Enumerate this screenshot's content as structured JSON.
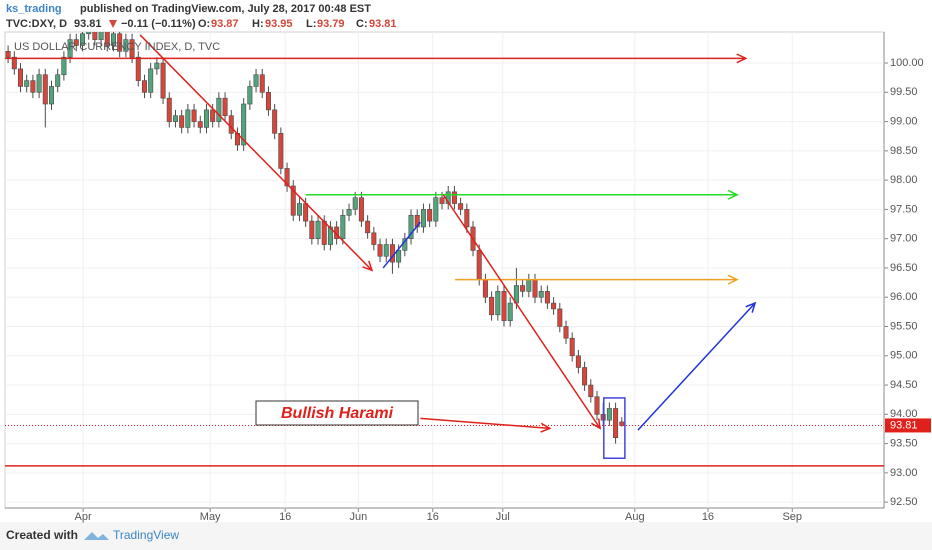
{
  "header": {
    "author": "ks_trading",
    "published": "published on TradingView.com, July 28, 2017 00:48 EST",
    "symbol": "TVC:DXY, D",
    "change": "−0.11 (−0.11%)",
    "ohlc_labels": [
      "O:",
      "H:",
      "L:",
      "C:"
    ]
  },
  "chart_data": {
    "type": "candlestick",
    "title": "US DOLLAR CURRENCY INDEX, D, TVC",
    "annotation": "Bullish Harami",
    "x": [
      0,
      1,
      2,
      3,
      4,
      5,
      6,
      7,
      8,
      9,
      10,
      11,
      12,
      13,
      14,
      15,
      16,
      17,
      18,
      19,
      20,
      21,
      22,
      23,
      24,
      25,
      26,
      27,
      28,
      29,
      30,
      31,
      32,
      33,
      34,
      35,
      36,
      37,
      38,
      39,
      40,
      41,
      42,
      43,
      44,
      45,
      46,
      47,
      48,
      49,
      50,
      51,
      52,
      53,
      54,
      55,
      56,
      57,
      58,
      59,
      60,
      61,
      62,
      63,
      64,
      65,
      66,
      67,
      68,
      69,
      70,
      71,
      72,
      73,
      74,
      75,
      76,
      77,
      78,
      79,
      80,
      81,
      82,
      83,
      84,
      85,
      86,
      87,
      88,
      89,
      90,
      91,
      92,
      93,
      94,
      95,
      96,
      97,
      98,
      99
    ],
    "candles": [
      [
        100.2,
        100.3,
        100.0,
        100.1
      ],
      [
        100.1,
        100.2,
        99.8,
        99.9
      ],
      [
        99.9,
        100.0,
        99.5,
        99.6
      ],
      [
        99.6,
        99.8,
        99.5,
        99.7
      ],
      [
        99.7,
        99.8,
        99.4,
        99.5
      ],
      [
        99.5,
        99.9,
        99.4,
        99.8
      ],
      [
        99.8,
        99.9,
        98.9,
        99.3
      ],
      [
        99.3,
        99.7,
        99.2,
        99.6
      ],
      [
        99.6,
        99.9,
        99.5,
        99.8
      ],
      [
        99.8,
        100.2,
        99.7,
        100.1
      ],
      [
        100.1,
        100.5,
        100.0,
        100.4
      ],
      [
        100.4,
        100.5,
        100.2,
        100.3
      ],
      [
        100.3,
        100.6,
        100.2,
        100.5
      ],
      [
        100.5,
        100.8,
        100.4,
        100.7
      ],
      [
        100.7,
        100.8,
        100.3,
        100.4
      ],
      [
        100.4,
        100.7,
        100.3,
        100.6
      ],
      [
        100.6,
        100.7,
        100.2,
        100.3
      ],
      [
        100.3,
        100.6,
        100.2,
        100.5
      ],
      [
        100.5,
        100.6,
        100.1,
        100.2
      ],
      [
        100.2,
        100.5,
        100.1,
        100.4
      ],
      [
        100.4,
        100.5,
        100.0,
        100.1
      ],
      [
        100.1,
        100.2,
        99.6,
        99.7
      ],
      [
        99.7,
        99.8,
        99.4,
        99.5
      ],
      [
        99.5,
        100.0,
        99.4,
        99.9
      ],
      [
        99.9,
        100.1,
        99.8,
        100.0
      ],
      [
        100.0,
        100.1,
        99.3,
        99.4
      ],
      [
        99.4,
        99.5,
        98.9,
        99.0
      ],
      [
        99.0,
        99.2,
        98.9,
        99.1
      ],
      [
        99.1,
        99.2,
        98.8,
        98.9
      ],
      [
        98.9,
        99.3,
        98.8,
        99.2
      ],
      [
        99.2,
        99.3,
        98.9,
        99.0
      ],
      [
        99.0,
        99.1,
        98.8,
        98.9
      ],
      [
        98.9,
        99.3,
        98.8,
        99.2
      ],
      [
        99.2,
        99.3,
        98.9,
        99.0
      ],
      [
        99.0,
        99.5,
        98.9,
        99.4
      ],
      [
        99.4,
        99.5,
        99.0,
        99.1
      ],
      [
        99.1,
        99.2,
        98.7,
        98.8
      ],
      [
        98.8,
        98.9,
        98.5,
        98.6
      ],
      [
        98.6,
        99.4,
        98.5,
        99.3
      ],
      [
        99.3,
        99.7,
        99.2,
        99.6
      ],
      [
        99.6,
        99.9,
        99.5,
        99.8
      ],
      [
        99.8,
        99.9,
        99.4,
        99.5
      ],
      [
        99.5,
        99.6,
        99.1,
        99.2
      ],
      [
        99.2,
        99.3,
        98.7,
        98.8
      ],
      [
        98.8,
        98.9,
        98.1,
        98.2
      ],
      [
        98.2,
        98.3,
        97.8,
        97.9
      ],
      [
        97.9,
        98.0,
        97.3,
        97.4
      ],
      [
        97.4,
        97.7,
        97.3,
        97.6
      ],
      [
        97.6,
        97.7,
        97.2,
        97.3
      ],
      [
        97.3,
        97.4,
        96.9,
        97.0
      ],
      [
        97.0,
        97.4,
        96.9,
        97.3
      ],
      [
        97.3,
        97.4,
        96.8,
        96.9
      ],
      [
        96.9,
        97.3,
        96.8,
        97.2
      ],
      [
        97.2,
        97.3,
        96.9,
        97.0
      ],
      [
        97.0,
        97.5,
        96.9,
        97.4
      ],
      [
        97.4,
        97.6,
        97.3,
        97.5
      ],
      [
        97.5,
        97.8,
        97.4,
        97.7
      ],
      [
        97.7,
        97.8,
        97.2,
        97.3
      ],
      [
        97.3,
        97.4,
        97.0,
        97.1
      ],
      [
        97.1,
        97.2,
        96.8,
        96.9
      ],
      [
        96.9,
        97.0,
        96.6,
        96.7
      ],
      [
        96.7,
        97.0,
        96.6,
        96.9
      ],
      [
        96.9,
        97.0,
        96.4,
        96.6
      ],
      [
        96.6,
        96.9,
        96.5,
        96.8
      ],
      [
        96.8,
        97.1,
        96.7,
        97.0
      ],
      [
        97.0,
        97.5,
        96.9,
        97.4
      ],
      [
        97.4,
        97.5,
        97.1,
        97.2
      ],
      [
        97.2,
        97.6,
        97.1,
        97.5
      ],
      [
        97.5,
        97.6,
        97.2,
        97.3
      ],
      [
        97.3,
        97.8,
        97.2,
        97.7
      ],
      [
        97.7,
        97.8,
        97.5,
        97.6
      ],
      [
        97.6,
        97.9,
        97.5,
        97.8
      ],
      [
        97.8,
        97.9,
        97.5,
        97.6
      ],
      [
        97.6,
        97.7,
        97.4,
        97.5
      ],
      [
        97.5,
        97.6,
        97.1,
        97.2
      ],
      [
        97.2,
        97.3,
        96.7,
        96.8
      ],
      [
        96.8,
        96.9,
        96.2,
        96.3
      ],
      [
        96.3,
        96.4,
        95.9,
        96.0
      ],
      [
        96.0,
        96.1,
        95.6,
        95.7
      ],
      [
        95.7,
        96.2,
        95.6,
        96.1
      ],
      [
        96.1,
        96.2,
        95.5,
        95.6
      ],
      [
        95.6,
        96.0,
        95.5,
        95.9
      ],
      [
        95.9,
        96.5,
        95.8,
        96.2
      ],
      [
        96.2,
        96.3,
        96.0,
        96.1
      ],
      [
        96.1,
        96.4,
        96.0,
        96.3
      ],
      [
        96.3,
        96.4,
        95.9,
        96.0
      ],
      [
        96.0,
        96.2,
        95.9,
        96.1
      ],
      [
        96.1,
        96.2,
        95.8,
        95.9
      ],
      [
        95.9,
        96.0,
        95.7,
        95.8
      ],
      [
        95.8,
        95.9,
        95.4,
        95.5
      ],
      [
        95.5,
        95.6,
        95.2,
        95.3
      ],
      [
        95.3,
        95.4,
        94.9,
        95.0
      ],
      [
        95.0,
        95.1,
        94.7,
        94.8
      ],
      [
        94.8,
        94.9,
        94.4,
        94.5
      ],
      [
        94.5,
        94.6,
        94.2,
        94.3
      ],
      [
        94.3,
        94.4,
        93.9,
        94.0
      ],
      [
        94.0,
        94.2,
        93.8,
        93.9
      ],
      [
        93.9,
        94.2,
        93.8,
        94.1
      ],
      [
        94.1,
        94.2,
        93.5,
        93.6
      ],
      [
        93.87,
        93.95,
        93.79,
        93.81
      ]
    ],
    "up_color": "#53a47d",
    "down_color": "#d6463a",
    "xlim": [
      -0.5,
      141.3
    ],
    "ylim": [
      92.4,
      100.53
    ],
    "xticks": [
      {
        "value": 12.1,
        "label": "Apr"
      },
      {
        "value": 32.6,
        "label": "May"
      },
      {
        "value": 44.7,
        "label": "16"
      },
      {
        "value": 56.5,
        "label": "Jun"
      },
      {
        "value": 68.5,
        "label": "16"
      },
      {
        "value": 79.8,
        "label": "Jul"
      },
      {
        "value": 101.1,
        "label": "Aug"
      },
      {
        "value": 112.9,
        "label": "16"
      },
      {
        "value": 126.5,
        "label": "Sep"
      }
    ],
    "yticks": [
      {
        "value": 92.5,
        "label": "92.50"
      },
      {
        "value": 93,
        "label": "93.00"
      },
      {
        "value": 93.5,
        "label": "93.50"
      },
      {
        "value": 94,
        "label": "94.00"
      },
      {
        "value": 94.5,
        "label": "94.50"
      },
      {
        "value": 95,
        "label": "95.00"
      },
      {
        "value": 95.5,
        "label": "95.50"
      },
      {
        "value": 96,
        "label": "96.00"
      },
      {
        "value": 96.5,
        "label": "96.50"
      },
      {
        "value": 97,
        "label": "97.00"
      },
      {
        "value": 97.5,
        "label": "97.50"
      },
      {
        "value": 98,
        "label": "98.00"
      },
      {
        "value": 98.5,
        "label": "98.50"
      },
      {
        "value": 99,
        "label": "99.00"
      },
      {
        "value": 99.5,
        "label": "99.50"
      },
      {
        "value": 100,
        "label": "100.00"
      }
    ],
    "grid": true,
    "drawings": [
      {
        "kind": "line",
        "color": "#e0201b",
        "arrow": true,
        "x": [
          -0.5,
          119
        ],
        "y": [
          100.08,
          100.08
        ]
      },
      {
        "kind": "line",
        "color": "#22dd22",
        "arrow": true,
        "x": [
          48,
          117.6
        ],
        "y": [
          97.75,
          97.75
        ]
      },
      {
        "kind": "line",
        "color": "#f0a020",
        "arrow": true,
        "x": [
          72.1,
          117.6
        ],
        "y": [
          96.3,
          96.3
        ]
      },
      {
        "kind": "line",
        "color": "#e0201b",
        "arrow": false,
        "x": [
          -0.5,
          141.3
        ],
        "y": [
          93.12,
          93.12
        ]
      },
      {
        "kind": "line",
        "color": "#e0201b",
        "arrow": true,
        "x": [
          21.3,
          58.7
        ],
        "y": [
          100.48,
          96.46
        ]
      },
      {
        "kind": "line",
        "color": "#2233dd",
        "arrow": false,
        "x": [
          60.5,
          66.5
        ],
        "y": [
          96.5,
          97.28
        ]
      },
      {
        "kind": "line",
        "color": "#e0201b",
        "arrow": true,
        "x": [
          70.2,
          95.5
        ],
        "y": [
          97.75,
          93.76
        ]
      },
      {
        "kind": "line",
        "color": "#2233dd",
        "arrow": true,
        "x": [
          101.6,
          120.5
        ],
        "y": [
          93.73,
          95.9
        ]
      },
      {
        "kind": "line",
        "color": "#e0201b",
        "arrow": true,
        "x": [
          66.5,
          87.4
        ],
        "y": [
          93.93,
          93.76
        ]
      },
      {
        "kind": "box",
        "color": "#4444dd",
        "x": [
          96.1,
          99.5
        ],
        "y": [
          94.28,
          93.25
        ]
      }
    ]
  },
  "footer": {
    "created": "Created with",
    "brand": "TradingView"
  }
}
